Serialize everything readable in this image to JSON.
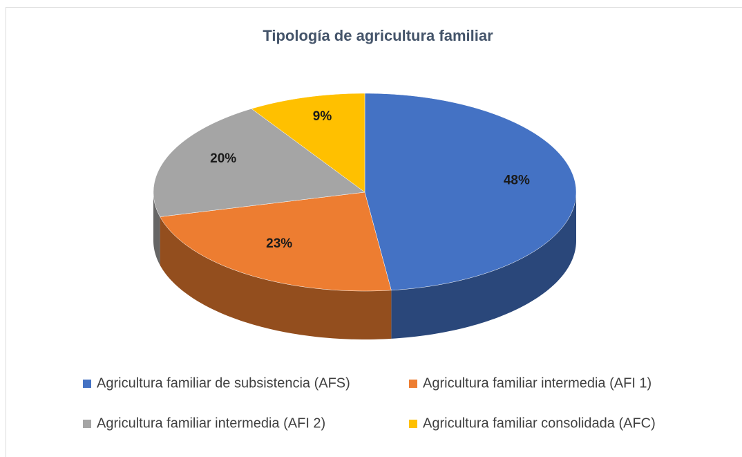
{
  "chart_data": {
    "type": "pie3d",
    "title": "Tipología de agricultura familiar",
    "categories": [
      "Agricultura familiar de subsistencia (AFS)",
      "Agricultura familiar intermedia (AFI 1)",
      "Agricultura familiar intermedia (AFI 2)",
      "Agricultura familiar consolidada (AFC)"
    ],
    "values": [
      48,
      23,
      20,
      9
    ],
    "value_labels": [
      "48%",
      "23%",
      "20%",
      "9%"
    ],
    "colors": [
      "#4472c4",
      "#ed7d31",
      "#a5a5a5",
      "#ffc000"
    ],
    "legend": "bottom"
  }
}
